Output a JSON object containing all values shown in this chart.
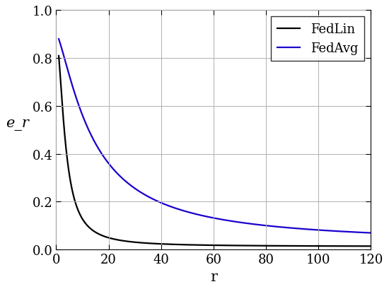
{
  "title": "",
  "xlabel": "r",
  "ylabel": "e_r",
  "xlim": [
    1,
    120
  ],
  "ylim": [
    0,
    1.0
  ],
  "xticks": [
    0,
    20,
    40,
    60,
    80,
    100,
    120
  ],
  "yticks": [
    0,
    0.2,
    0.4,
    0.6,
    0.8,
    1.0
  ],
  "fedlin_color": "#000000",
  "fedavg_color": "#1a00cc",
  "fedlin_label": "FedLin",
  "fedavg_label": "FedAvg",
  "linewidth": 1.6,
  "background_color": "#ffffff",
  "grid_color": "#b0b0b0",
  "legend_fontsize": 13,
  "axis_fontsize": 15,
  "tick_fontsize": 13
}
